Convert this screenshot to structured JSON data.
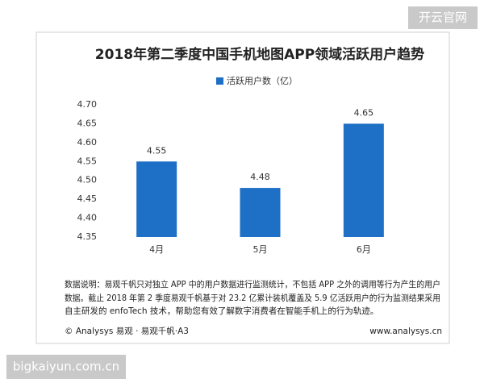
{
  "header_badge": "开云官网",
  "chart_data": {
    "type": "bar",
    "title": "2018年第二季度中国手机地图APP领域活跃用户趋势",
    "categories": [
      "4月",
      "5月",
      "6月"
    ],
    "series": [
      {
        "name": "活跃用户数（亿）",
        "color": "#1e6fc6",
        "values": [
          4.55,
          4.48,
          4.65
        ]
      }
    ],
    "ylim": [
      4.35,
      4.7
    ],
    "yticks": [
      {
        "value": 4.7,
        "label": "4.70"
      },
      4.65,
      {
        "value": 4.6,
        "label": "4.60"
      },
      4.55,
      {
        "value": 4.5,
        "label": "4.50"
      },
      4.45,
      {
        "value": 4.4,
        "label": "4.40"
      },
      4.35
    ],
    "grid": false,
    "legend": "top"
  },
  "note": [
    "数据说明：易观千帆只对独立 APP 中的用户数据进行监测统计，不包括 APP 之外的调用等行为产生的用户",
    "数据。截止 2018 年第 2 季度易观千帆基于对 23.2 亿累计装机覆盖及 5.9 亿活跃用户的行为监测结果采用",
    "自主研发的 enfoTech 技术，帮助您有效了解数字消费者在智能手机上的行为轨迹。"
  ],
  "footer": {
    "left": "© Analysys 易观 · 易观千帆·A3",
    "right": "www.analysys.cn"
  },
  "footer_badge": "bigkaiyun.com.cn"
}
